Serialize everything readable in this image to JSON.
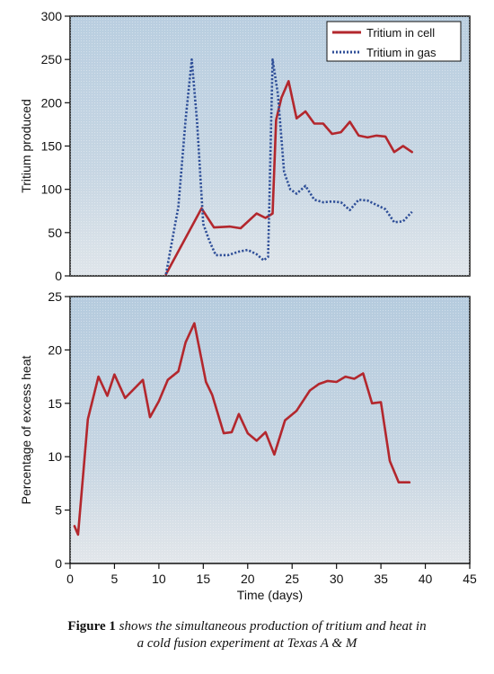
{
  "chart_data": [
    {
      "type": "line",
      "ylabel": "Tritium produced",
      "xlabel": "",
      "xlim": [
        0,
        45
      ],
      "ylim": [
        0,
        300
      ],
      "yticks": [
        0,
        50,
        100,
        150,
        200,
        250,
        300
      ],
      "legend": "top-right",
      "series": [
        {
          "name": "Tritium in cell",
          "color": "#b3272d",
          "style": "solid",
          "x": [
            10.8,
            14.8,
            16.2,
            18.0,
            19.2,
            21.0,
            22.0,
            22.8,
            23.2,
            23.8,
            24.6,
            25.5,
            26.5,
            27.5,
            28.5,
            29.5,
            30.5,
            31.5,
            32.5,
            33.5,
            34.5,
            35.5,
            36.5,
            37.5,
            38.5
          ],
          "y": [
            2,
            78,
            56,
            57,
            55,
            72,
            67,
            72,
            180,
            206,
            225,
            182,
            190,
            176,
            176,
            164,
            166,
            178,
            162,
            160,
            162,
            161,
            143,
            150,
            143
          ]
        },
        {
          "name": "Tritium in gas",
          "color": "#2f4f98",
          "style": "dotted",
          "x": [
            10.8,
            12.2,
            13.0,
            13.7,
            14.3,
            15.0,
            15.7,
            16.4,
            17.8,
            19.0,
            20.0,
            21.0,
            21.8,
            22.3,
            22.8,
            23.4,
            24.1,
            24.8,
            25.5,
            26.5,
            27.5,
            28.5,
            29.5,
            30.5,
            31.5,
            32.5,
            33.5,
            34.5,
            35.5,
            36.5,
            37.5,
            38.5
          ],
          "y": [
            2,
            80,
            180,
            250,
            178,
            60,
            40,
            24,
            24,
            28,
            30,
            25,
            18,
            22,
            250,
            210,
            120,
            100,
            95,
            104,
            88,
            85,
            86,
            85,
            76,
            88,
            87,
            82,
            77,
            62,
            63,
            74
          ]
        }
      ]
    },
    {
      "type": "line",
      "ylabel": "Percentage of excess heat",
      "xlabel": "Time (days)",
      "xlim": [
        0,
        45
      ],
      "ylim": [
        0,
        25
      ],
      "xticks": [
        0,
        5,
        10,
        15,
        20,
        25,
        30,
        35,
        40,
        45
      ],
      "yticks": [
        0,
        5,
        10,
        15,
        20,
        25
      ],
      "series": [
        {
          "color": "#b3272d",
          "style": "solid",
          "x": [
            0.5,
            0.9,
            2.0,
            3.2,
            4.2,
            5.0,
            6.2,
            8.2,
            9.0,
            10.0,
            11.0,
            12.2,
            13.0,
            14.0,
            15.3,
            16.0,
            17.3,
            18.2,
            19.0,
            20.0,
            21.0,
            22.0,
            23.0,
            24.2,
            25.5,
            27.0,
            28.0,
            29.0,
            30.0,
            31.0,
            32.0,
            33.0,
            34.0,
            35.0,
            36.0,
            37.0,
            38.2
          ],
          "y": [
            3.5,
            2.7,
            13.5,
            17.5,
            15.7,
            17.7,
            15.5,
            17.2,
            13.7,
            15.2,
            17.2,
            18.0,
            20.7,
            22.5,
            17.0,
            15.8,
            12.2,
            12.3,
            14.0,
            12.2,
            11.5,
            12.3,
            10.2,
            13.4,
            14.3,
            16.2,
            16.8,
            17.1,
            17.0,
            17.5,
            17.3,
            17.8,
            15.0,
            15.1,
            9.6,
            7.6,
            7.6
          ]
        }
      ]
    }
  ],
  "caption": {
    "label": "Figure 1",
    "text": " shows the simultaneous production of tritium and heat in",
    "text2": "a cold fusion experiment at Texas A & M"
  }
}
